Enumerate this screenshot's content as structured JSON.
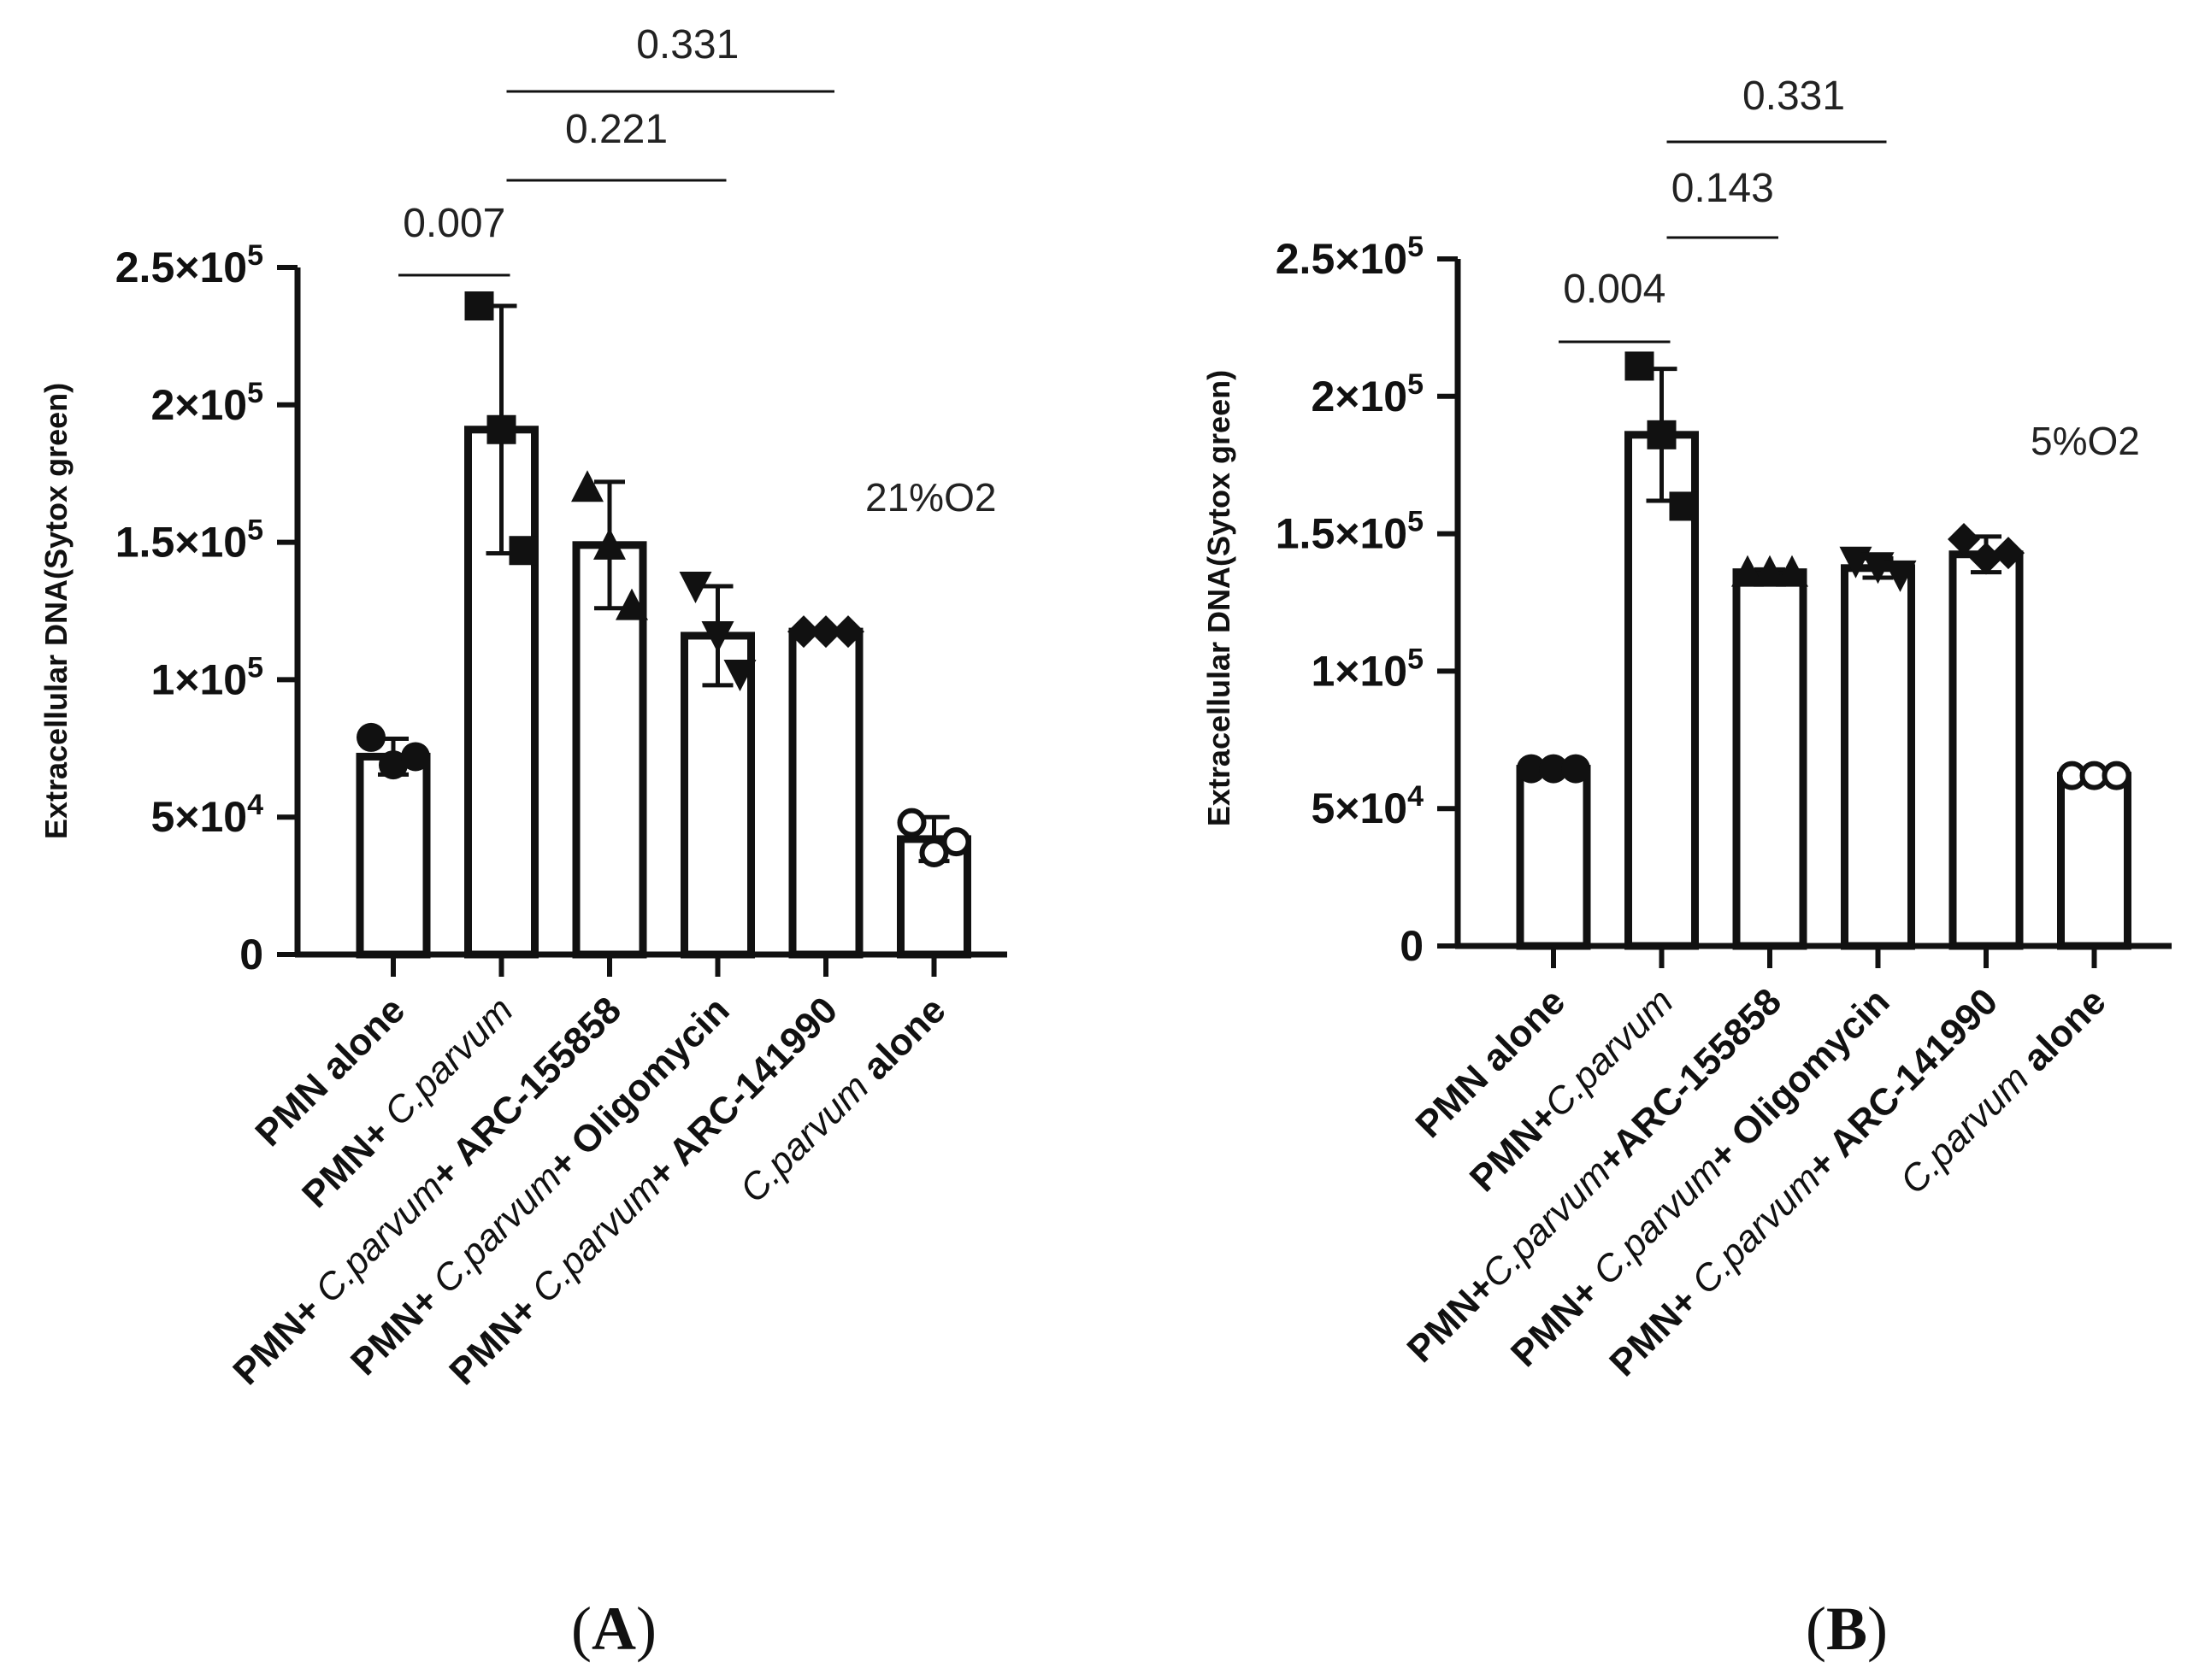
{
  "chart_data": [
    {
      "type": "bar",
      "panel_label": "A",
      "condition_label": "21%O2",
      "ylabel": "Extracellular DNA(Sytox green)",
      "ylim": [
        0,
        250000
      ],
      "yticks": [
        {
          "value": 0,
          "label": "0"
        },
        {
          "value": 50000,
          "label": "5×10",
          "exp": "4"
        },
        {
          "value": 100000,
          "label": "1×10",
          "exp": "5"
        },
        {
          "value": 150000,
          "label": "1.5×10",
          "exp": "5"
        },
        {
          "value": 200000,
          "label": "2×10",
          "exp": "5"
        },
        {
          "value": 250000,
          "label": "2.5×10",
          "exp": "5"
        }
      ],
      "categories": [
        [
          {
            "t": "PMN alone",
            "i": false
          }
        ],
        [
          {
            "t": "PMN+ ",
            "i": false
          },
          {
            "t": "C.parvum",
            "i": true
          }
        ],
        [
          {
            "t": "PMN+ ",
            "i": false
          },
          {
            "t": "C.parvum",
            "i": true
          },
          {
            "t": "+ ARC-155858",
            "i": false
          }
        ],
        [
          {
            "t": "PMN+ ",
            "i": false
          },
          {
            "t": "C.parvum",
            "i": true
          },
          {
            "t": "+ Oligomycin",
            "i": false
          }
        ],
        [
          {
            "t": "PMN+ ",
            "i": false
          },
          {
            "t": "C.parvum",
            "i": true
          },
          {
            "t": "+ ARC-141990",
            "i": false
          }
        ],
        [
          {
            "t": "C.parvum",
            "i": true
          },
          {
            "t": " alone",
            "i": false
          }
        ]
      ],
      "means": [
        72000,
        191000,
        149000,
        116000,
        117500,
        42000
      ],
      "errors": [
        6500,
        45000,
        23000,
        18000,
        0,
        8000
      ],
      "points": [
        [
          79000,
          69000,
          72000
        ],
        [
          236000,
          191000,
          147000
        ],
        [
          170000,
          149000,
          127000
        ],
        [
          134000,
          116000,
          102000
        ],
        [
          117500,
          117500,
          117500
        ],
        [
          48000,
          37000,
          41000
        ]
      ],
      "markers": [
        "circle",
        "square",
        "triangle-up",
        "triangle-down",
        "diamond",
        "circle-open"
      ],
      "comparisons": [
        {
          "from": 0,
          "to": 1,
          "label": "0.007"
        },
        {
          "from": 1,
          "to": 3,
          "label": "0.221"
        },
        {
          "from": 1,
          "to": 4,
          "label": "0.331"
        }
      ]
    },
    {
      "type": "bar",
      "panel_label": "B",
      "condition_label": "5%O2",
      "ylabel": "Extracellular DNA(Sytox green)",
      "ylim": [
        0,
        250000
      ],
      "yticks": [
        {
          "value": 0,
          "label": "0"
        },
        {
          "value": 50000,
          "label": "5×10",
          "exp": "4"
        },
        {
          "value": 100000,
          "label": "1×10",
          "exp": "5"
        },
        {
          "value": 150000,
          "label": "1.5×10",
          "exp": "5"
        },
        {
          "value": 200000,
          "label": "2×10",
          "exp": "5"
        },
        {
          "value": 250000,
          "label": "2.5×10",
          "exp": "5"
        }
      ],
      "categories": [
        [
          {
            "t": "PMN alone",
            "i": false
          }
        ],
        [
          {
            "t": "PMN+",
            "i": false
          },
          {
            "t": "C.parvum",
            "i": true
          }
        ],
        [
          {
            "t": "PMN+",
            "i": false
          },
          {
            "t": "C.parvum",
            "i": true
          },
          {
            "t": "+ARC-155858",
            "i": false
          }
        ],
        [
          {
            "t": "PMN+ ",
            "i": false
          },
          {
            "t": "C.parvum",
            "i": true
          },
          {
            "t": "+ Oligomycin",
            "i": false
          }
        ],
        [
          {
            "t": "PMN+ ",
            "i": false
          },
          {
            "t": "C.parvum",
            "i": true
          },
          {
            "t": "+ ARC-141990",
            "i": false
          }
        ],
        [
          {
            "t": "C.parvum",
            "i": true
          },
          {
            "t": " alone",
            "i": false
          }
        ]
      ],
      "means": [
        64500,
        186000,
        136000,
        137500,
        142500,
        62000
      ],
      "errors": [
        1500,
        24000,
        1000,
        3500,
        6500,
        1000
      ],
      "points": [
        [
          64500,
          64500,
          64500
        ],
        [
          211000,
          186000,
          160000
        ],
        [
          136000,
          136000,
          136000
        ],
        [
          140000,
          138000,
          135000
        ],
        [
          148000,
          141000,
          143000
        ],
        [
          62000,
          62000,
          62000
        ]
      ],
      "markers": [
        "circle",
        "square",
        "triangle-up",
        "triangle-down",
        "diamond",
        "circle-open"
      ],
      "comparisons": [
        {
          "from": 0,
          "to": 1,
          "label": "0.004"
        },
        {
          "from": 1,
          "to": 2,
          "label": "0.143"
        },
        {
          "from": 1,
          "to": 3,
          "label": "0.331"
        }
      ]
    }
  ]
}
